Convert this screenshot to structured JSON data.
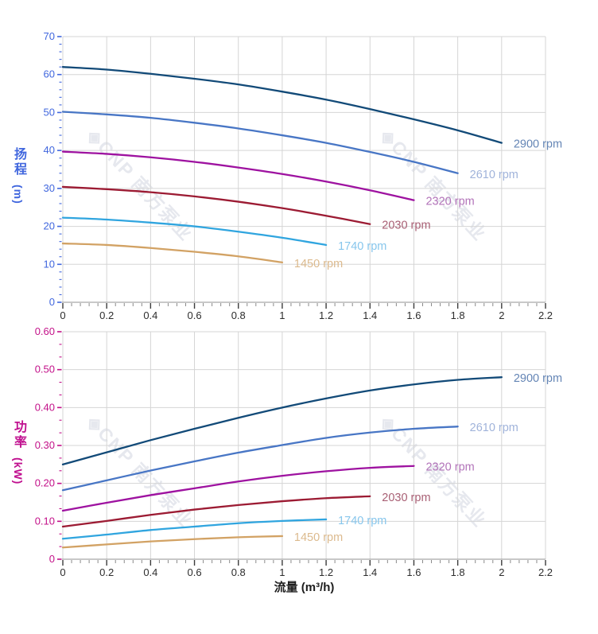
{
  "watermark": {
    "text": "◈CNP 南方泵业",
    "color": "#e6e8ee"
  },
  "axis": {
    "x_tick_values": [
      0,
      0.2,
      0.4,
      0.6,
      0.8,
      1,
      1.2,
      1.4,
      1.6,
      1.8,
      2,
      2.2
    ],
    "x_tick_labels": [
      "0",
      "0.2",
      "0.4",
      "0.6",
      "0.8",
      "1",
      "1.2",
      "1.4",
      "1.6",
      "1.8",
      "2",
      "2.2"
    ],
    "tick_label_color": "#2d2d2d",
    "major_tick_color": "#3c3c3c",
    "minor_tick_color": "#8a8a8a",
    "grid_color": "#d5d5d5",
    "axis_line_color": "#a6a6a6"
  },
  "chart_data": [
    {
      "type": "line",
      "name": "head-vs-flow",
      "title": "",
      "ylabel": "扬程",
      "ylabel_unit": "(m)",
      "xlabel": "",
      "axis_color": "#4167de",
      "xlim": [
        0,
        2.2
      ],
      "ylim": [
        0,
        70
      ],
      "y_tick_values": [
        0,
        10,
        20,
        30,
        40,
        50,
        60,
        70
      ],
      "y_tick_labels": [
        "0",
        "10",
        "20",
        "30",
        "40",
        "50",
        "60",
        "70"
      ],
      "x_minors_per_major": 4,
      "y_minors_per_major": 4,
      "grid": true,
      "legend_position": "line-end-labels",
      "series": [
        {
          "name": "2900 rpm",
          "color": "#124a78",
          "label_color": "#6485b5",
          "x": [
            0,
            0.2,
            0.4,
            0.6,
            0.8,
            1,
            1.2,
            1.4,
            1.6,
            1.8,
            2
          ],
          "y": [
            62,
            61.3,
            60.2,
            58.9,
            57.4,
            55.5,
            53.4,
            50.9,
            48.2,
            45.3,
            42
          ]
        },
        {
          "name": "2610 rpm",
          "color": "#4876c5",
          "label_color": "#a0b3da",
          "x": [
            0,
            0.2,
            0.4,
            0.6,
            0.8,
            1,
            1.2,
            1.4,
            1.6,
            1.8
          ],
          "y": [
            50.2,
            49.5,
            48.6,
            47.3,
            45.8,
            44,
            42,
            39.6,
            37,
            34
          ]
        },
        {
          "name": "2320 rpm",
          "color": "#9e12a0",
          "label_color": "#b273b9",
          "x": [
            0,
            0.2,
            0.4,
            0.6,
            0.8,
            1,
            1.2,
            1.4,
            1.6
          ],
          "y": [
            39.7,
            39.1,
            38.2,
            37,
            35.5,
            33.8,
            31.8,
            29.5,
            26.9
          ]
        },
        {
          "name": "2030 rpm",
          "color": "#9c1b33",
          "label_color": "#a85f74",
          "x": [
            0,
            0.2,
            0.4,
            0.6,
            0.8,
            1,
            1.2,
            1.4
          ],
          "y": [
            30.4,
            29.8,
            29,
            27.9,
            26.5,
            24.8,
            22.8,
            20.6
          ]
        },
        {
          "name": "1740 rpm",
          "color": "#30a5df",
          "label_color": "#87c6ec",
          "x": [
            0,
            0.2,
            0.4,
            0.6,
            0.8,
            1,
            1.2
          ],
          "y": [
            22.3,
            21.8,
            21,
            20,
            18.6,
            17,
            15.1
          ]
        },
        {
          "name": "1450 rpm",
          "color": "#d2a264",
          "label_color": "#dcba8e",
          "x": [
            0,
            0.2,
            0.4,
            0.6,
            0.8,
            1
          ],
          "y": [
            15.5,
            15.1,
            14.3,
            13.3,
            12.1,
            10.5
          ]
        }
      ]
    },
    {
      "type": "line",
      "name": "power-vs-flow",
      "title": "",
      "ylabel": "功率",
      "ylabel_unit": "(kW)",
      "xlabel": "流量 (m³/h)",
      "axis_color": "#c31189",
      "xlim": [
        0,
        2.2
      ],
      "ylim": [
        0,
        0.6
      ],
      "y_tick_values": [
        0,
        0.1,
        0.2,
        0.3,
        0.4,
        0.5,
        0.6
      ],
      "y_tick_labels": [
        "0",
        "0.10",
        "0.20",
        "0.30",
        "0.40",
        "0.50",
        "0.60"
      ],
      "x_minors_per_major": 4,
      "y_minors_per_major": 2,
      "grid": true,
      "legend_position": "line-end-labels",
      "series": [
        {
          "name": "2900 rpm",
          "color": "#124a78",
          "label_color": "#6485b5",
          "x": [
            0,
            0.2,
            0.4,
            0.6,
            0.8,
            1,
            1.2,
            1.4,
            1.6,
            1.8,
            2
          ],
          "y": [
            0.25,
            0.282,
            0.314,
            0.344,
            0.373,
            0.4,
            0.424,
            0.445,
            0.461,
            0.473,
            0.48
          ]
        },
        {
          "name": "2610 rpm",
          "color": "#4876c5",
          "label_color": "#a0b3da",
          "x": [
            0,
            0.2,
            0.4,
            0.6,
            0.8,
            1,
            1.2,
            1.4,
            1.6,
            1.8
          ],
          "y": [
            0.182,
            0.208,
            0.234,
            0.258,
            0.281,
            0.301,
            0.32,
            0.334,
            0.344,
            0.35
          ]
        },
        {
          "name": "2320 rpm",
          "color": "#9e12a0",
          "label_color": "#b273b9",
          "x": [
            0,
            0.2,
            0.4,
            0.6,
            0.8,
            1,
            1.2,
            1.4,
            1.6
          ],
          "y": [
            0.128,
            0.149,
            0.169,
            0.187,
            0.205,
            0.22,
            0.232,
            0.241,
            0.246
          ]
        },
        {
          "name": "2030 rpm",
          "color": "#9c1b33",
          "label_color": "#a85f74",
          "x": [
            0,
            0.2,
            0.4,
            0.6,
            0.8,
            1,
            1.2,
            1.4
          ],
          "y": [
            0.086,
            0.101,
            0.117,
            0.131,
            0.143,
            0.153,
            0.161,
            0.166
          ]
        },
        {
          "name": "1740 rpm",
          "color": "#30a5df",
          "label_color": "#87c6ec",
          "x": [
            0,
            0.2,
            0.4,
            0.6,
            0.8,
            1,
            1.2
          ],
          "y": [
            0.054,
            0.065,
            0.077,
            0.086,
            0.095,
            0.101,
            0.105
          ]
        },
        {
          "name": "1450 rpm",
          "color": "#d2a264",
          "label_color": "#dcba8e",
          "x": [
            0,
            0.2,
            0.4,
            0.6,
            0.8,
            1
          ],
          "y": [
            0.031,
            0.039,
            0.047,
            0.053,
            0.058,
            0.061
          ]
        }
      ]
    }
  ]
}
